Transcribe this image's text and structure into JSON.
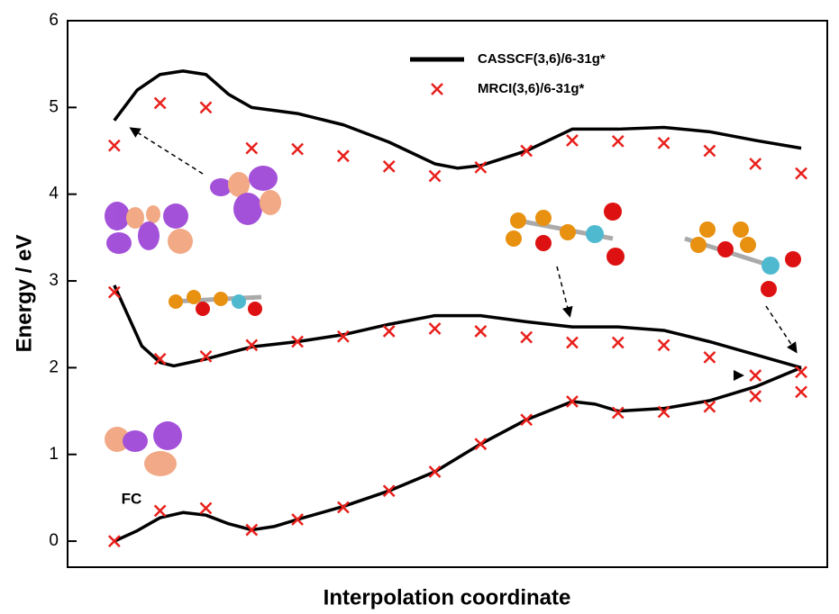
{
  "chart_data": {
    "type": "line",
    "xlabel": "Interpolation coordinate",
    "ylabel": "Energy / eV",
    "xlim": [
      -1.02,
      15.57
    ],
    "ylim": [
      -0.3,
      6
    ],
    "yticks": [
      0,
      1,
      2,
      3,
      4,
      5,
      6
    ],
    "legend": "top-center",
    "annotations": [
      "FC"
    ],
    "series": [
      {
        "name": "CASSCF(3,6)/6-31g*",
        "style": "line",
        "color": "#000000",
        "curves": [
          {
            "x": [
              0,
              0.5,
              1,
              1.5,
              2,
              2.5,
              3,
              3.5,
              4,
              5,
              6,
              7,
              8,
              9,
              10,
              10.5,
              11,
              12,
              13,
              14,
              15
            ],
            "values": [
              0,
              0.12,
              0.27,
              0.33,
              0.3,
              0.2,
              0.13,
              0.17,
              0.25,
              0.4,
              0.58,
              0.8,
              1.12,
              1.4,
              1.61,
              1.58,
              1.5,
              1.53,
              1.62,
              1.78,
              2.0
            ]
          },
          {
            "x": [
              0,
              0.3,
              0.6,
              1,
              1.3,
              2,
              3,
              4,
              5,
              6,
              7,
              8,
              9,
              10,
              11,
              12,
              13,
              14,
              15
            ],
            "values": [
              2.95,
              2.6,
              2.25,
              2.06,
              2.02,
              2.1,
              2.24,
              2.3,
              2.38,
              2.5,
              2.6,
              2.6,
              2.53,
              2.47,
              2.47,
              2.43,
              2.3,
              2.15,
              2.0
            ]
          },
          {
            "x": [
              0,
              0.5,
              1,
              1.5,
              2,
              2.5,
              3,
              4,
              5,
              6,
              7,
              7.5,
              8,
              9,
              10,
              11,
              12,
              13,
              14,
              15
            ],
            "values": [
              4.85,
              5.2,
              5.38,
              5.42,
              5.38,
              5.15,
              5.0,
              4.93,
              4.8,
              4.6,
              4.35,
              4.3,
              4.33,
              4.5,
              4.75,
              4.75,
              4.77,
              4.72,
              4.62,
              4.53
            ]
          }
        ]
      },
      {
        "name": "MRCI(3,6)/6-31g*",
        "style": "marker",
        "color": "#e8201c",
        "curves": [
          {
            "x": [
              0,
              1,
              2,
              3,
              4,
              5,
              6,
              7,
              8,
              9,
              10,
              11,
              12,
              13,
              14,
              15
            ],
            "values": [
              0,
              0.35,
              0.38,
              0.13,
              0.25,
              0.39,
              0.58,
              0.8,
              1.12,
              1.4,
              1.61,
              1.48,
              1.49,
              1.55,
              1.67,
              1.72
            ]
          },
          {
            "x": [
              0,
              1,
              2,
              3,
              4,
              5,
              6,
              7,
              8,
              9,
              10,
              11,
              12,
              13,
              14,
              15
            ],
            "values": [
              2.87,
              2.1,
              2.13,
              2.26,
              2.3,
              2.36,
              2.42,
              2.45,
              2.42,
              2.35,
              2.29,
              2.29,
              2.26,
              2.12,
              1.91,
              1.95
            ]
          },
          {
            "x": [
              0,
              1,
              2,
              3,
              4,
              5,
              6,
              7,
              8,
              9,
              10,
              11,
              12,
              13,
              14,
              15
            ],
            "values": [
              4.56,
              5.05,
              5.0,
              4.53,
              4.52,
              4.44,
              4.32,
              4.21,
              4.31,
              4.5,
              4.62,
              4.61,
              4.59,
              4.5,
              4.35,
              4.24
            ]
          }
        ]
      }
    ]
  }
}
